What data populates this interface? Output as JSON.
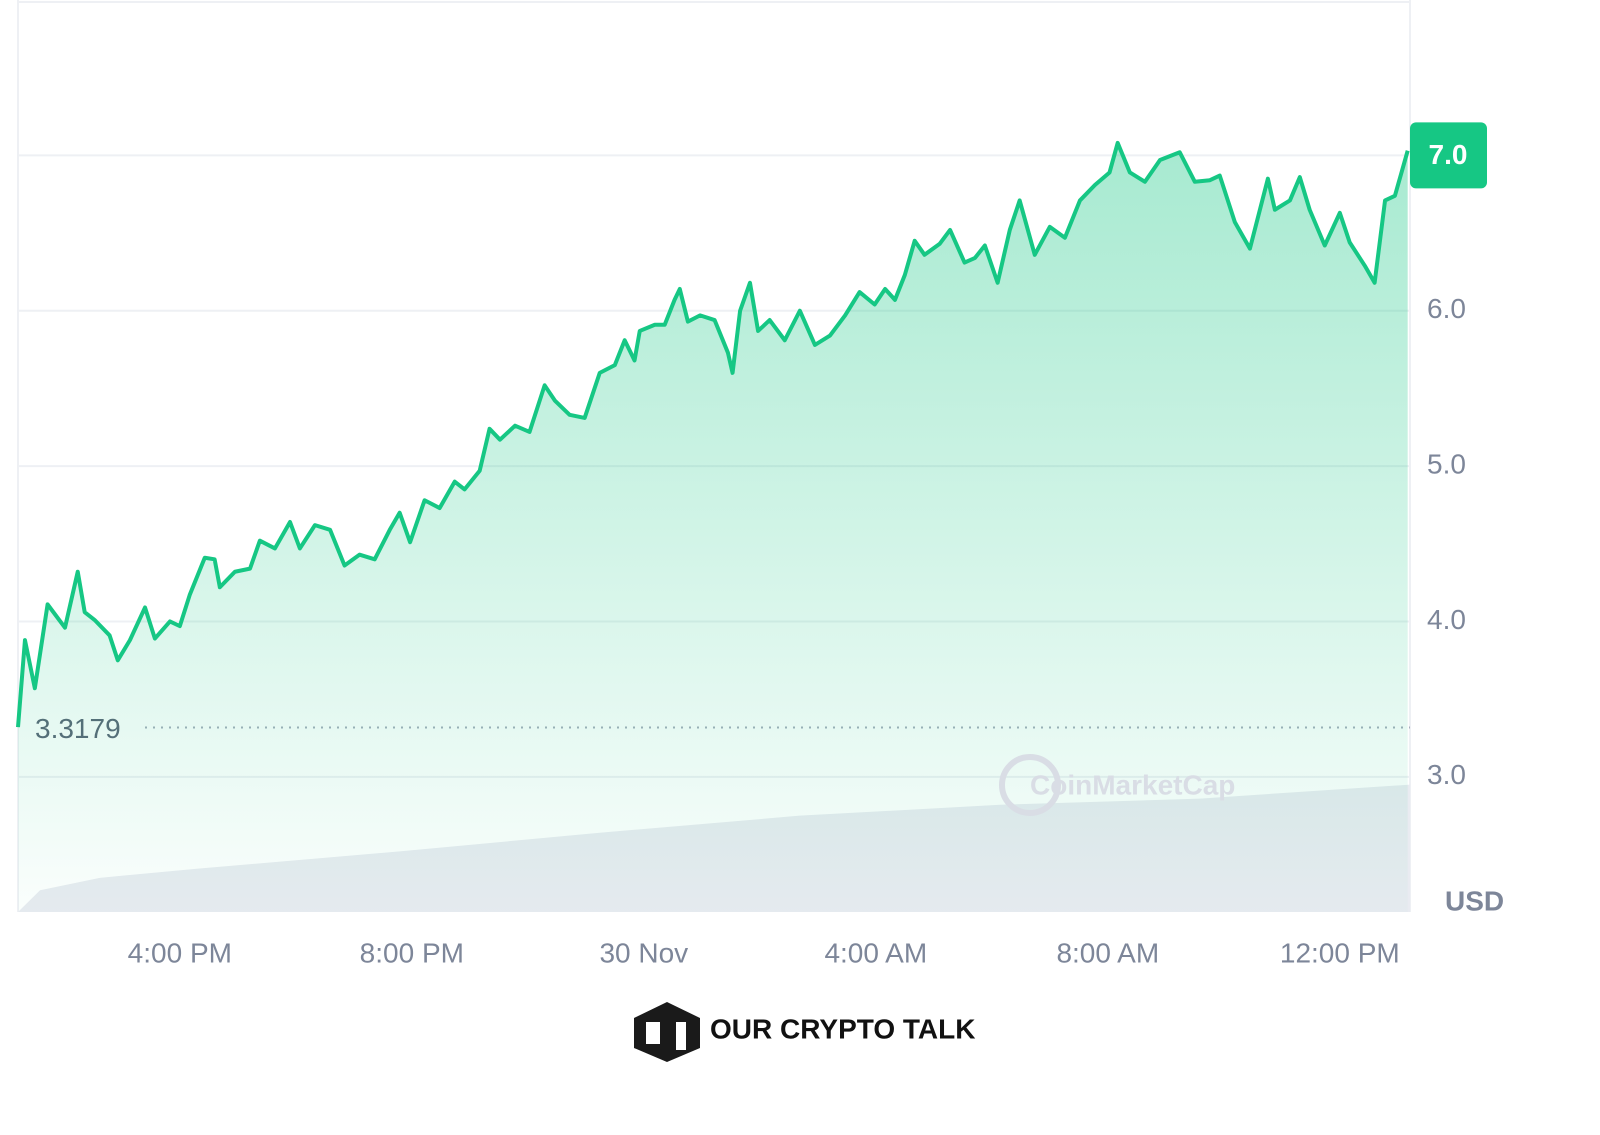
{
  "chart_data": {
    "type": "area",
    "x": [
      13.21,
      13.33,
      13.5,
      13.72,
      14.02,
      14.24,
      14.36,
      14.53,
      14.79,
      14.93,
      15.14,
      15.4,
      15.57,
      15.83,
      16.0,
      16.17,
      16.43,
      16.6,
      16.69,
      16.95,
      17.21,
      17.38,
      17.64,
      17.9,
      18.07,
      18.33,
      18.59,
      18.84,
      19.1,
      19.36,
      19.62,
      19.79,
      19.97,
      20.22,
      20.48,
      20.74,
      20.91,
      21.17,
      21.34,
      21.52,
      21.78,
      22.03,
      22.29,
      22.47,
      22.72,
      22.98,
      23.24,
      23.5,
      23.67,
      23.84,
      23.93,
      24.19,
      24.36,
      24.53,
      24.62,
      24.76,
      24.97,
      25.22,
      25.45,
      25.53,
      25.66,
      25.83,
      25.97,
      26.17,
      26.43,
      26.69,
      26.95,
      27.21,
      27.47,
      27.72,
      27.98,
      28.16,
      28.33,
      28.5,
      28.67,
      28.84,
      29.1,
      29.28,
      29.53,
      29.71,
      29.88,
      30.1,
      30.31,
      30.48,
      30.74,
      31.0,
      31.26,
      31.52,
      31.78,
      32.03,
      32.17,
      32.38,
      32.64,
      32.9,
      33.24,
      33.5,
      33.76,
      33.93,
      34.19,
      34.45,
      34.76,
      34.88,
      35.14,
      35.31,
      35.48,
      35.74,
      36.0,
      36.17,
      36.43,
      36.6,
      36.78,
      36.95,
      37.17
    ],
    "series": [
      {
        "color": "#16c784",
        "values": [
          3.32,
          3.88,
          3.57,
          4.11,
          3.96,
          4.32,
          4.06,
          4.01,
          3.91,
          3.75,
          3.88,
          4.09,
          3.89,
          4.0,
          3.97,
          4.17,
          4.41,
          4.4,
          4.22,
          4.32,
          4.34,
          4.52,
          4.47,
          4.64,
          4.47,
          4.62,
          4.59,
          4.36,
          4.43,
          4.4,
          4.59,
          4.7,
          4.51,
          4.78,
          4.73,
          4.9,
          4.85,
          4.97,
          5.24,
          5.17,
          5.26,
          5.22,
          5.52,
          5.42,
          5.33,
          5.31,
          5.6,
          5.65,
          5.81,
          5.68,
          5.87,
          5.91,
          5.91,
          6.07,
          6.14,
          5.93,
          5.97,
          5.94,
          5.73,
          5.6,
          6.0,
          6.18,
          5.87,
          5.94,
          5.81,
          6.0,
          5.78,
          5.84,
          5.97,
          6.12,
          6.04,
          6.14,
          6.07,
          6.23,
          6.45,
          6.36,
          6.43,
          6.52,
          6.31,
          6.34,
          6.42,
          6.18,
          6.52,
          6.71,
          6.36,
          6.54,
          6.47,
          6.71,
          6.81,
          6.89,
          7.08,
          6.89,
          6.83,
          6.97,
          7.02,
          6.83,
          6.84,
          6.87,
          6.57,
          6.4,
          6.85,
          6.65,
          6.71,
          6.86,
          6.65,
          6.42,
          6.63,
          6.44,
          6.29,
          6.18,
          6.71,
          6.74,
          7.03
        ]
      }
    ],
    "volume": {
      "color": "#e9ebf1",
      "x": [
        13.21,
        13.59,
        14.62,
        16.34,
        19.79,
        23.24,
        26.69,
        30.14,
        33.59,
        37.21
      ],
      "values": [
        2.13,
        2.27,
        2.35,
        2.41,
        2.52,
        2.64,
        2.75,
        2.82,
        2.86,
        2.95
      ]
    },
    "xlim": [
      13.21,
      37.21
    ],
    "xticks": [
      {
        "value": 16,
        "label": "4:00 PM"
      },
      {
        "value": 20,
        "label": "8:00 PM"
      },
      {
        "value": 24,
        "label": "30 Nov"
      },
      {
        "value": 28,
        "label": "4:00 AM"
      },
      {
        "value": 32,
        "label": "8:00 AM"
      },
      {
        "value": 36,
        "label": "12:00 PM"
      }
    ],
    "ylim": [
      2.13,
      8.0
    ],
    "yticks": [
      {
        "value": 3,
        "label": "3.0"
      },
      {
        "value": 4,
        "label": "4.0"
      },
      {
        "value": 5,
        "label": "5.0"
      },
      {
        "value": 6,
        "label": "6.0"
      },
      {
        "value": 7,
        "label": "7.0"
      }
    ],
    "grid": true,
    "open_price": 3.3179,
    "current_price": {
      "value": 7.0,
      "label": "7.0"
    },
    "y_unit": "USD",
    "watermark": "CoinMarketCap"
  },
  "footer": {
    "brand": "OUR CRYPTO TALK"
  }
}
